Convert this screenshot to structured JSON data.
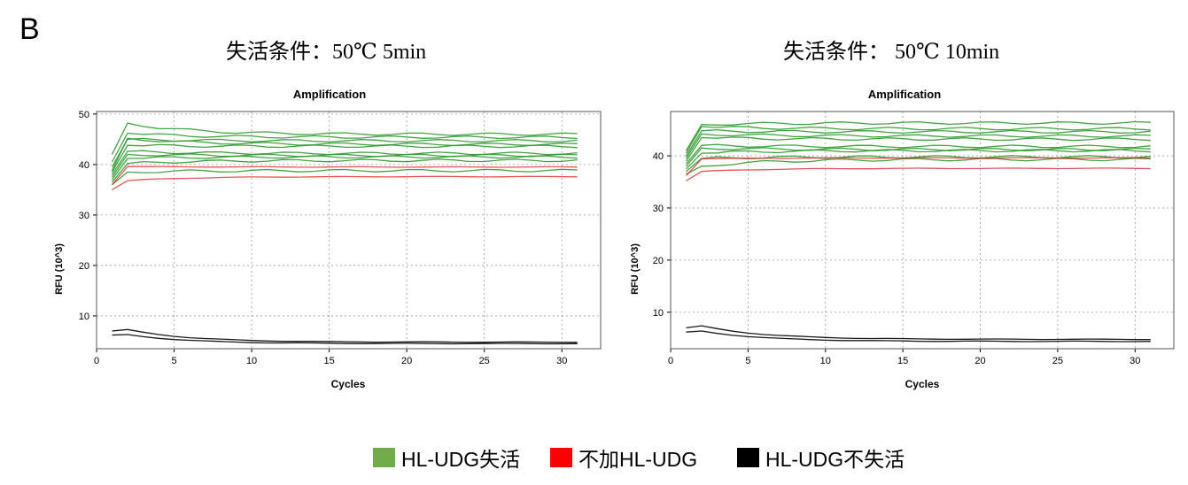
{
  "panel_label": "B",
  "conditions": {
    "left": "失活条件：50℃  5min",
    "right": "失活条件：  50℃  10min"
  },
  "legend": [
    {
      "label": "HL-UDG失活",
      "color": "#70ad47"
    },
    {
      "label": "不加HL-UDG",
      "color": "#ff0000"
    },
    {
      "label": "HL-UDG不失活",
      "color": "#000000"
    }
  ],
  "chart_data": [
    {
      "type": "line",
      "title": "Amplification",
      "xlabel": "Cycles",
      "ylabel": "RFU (10^3)",
      "xlim": [
        0,
        32.5
      ],
      "ylim": [
        3.5,
        50.5
      ],
      "xticks": [
        0,
        5,
        10,
        15,
        20,
        25,
        30
      ],
      "yticks": [
        10,
        20,
        30,
        40,
        50
      ],
      "grid": true,
      "x": [
        1,
        2,
        3,
        4,
        5,
        6,
        7,
        8,
        9,
        10,
        11,
        12,
        13,
        14,
        15,
        16,
        17,
        18,
        19,
        20,
        21,
        22,
        23,
        24,
        25,
        26,
        27,
        28,
        29,
        30,
        31
      ],
      "series": [
        {
          "group": "green",
          "color": "#2e9a2e",
          "start": 42.0,
          "peak": 48.2,
          "plateau": 46.0
        },
        {
          "group": "green",
          "color": "#2e9a2e",
          "start": 40.5,
          "peak": 46.2,
          "plateau": 45.4
        },
        {
          "group": "green",
          "color": "#2e9a2e",
          "start": 39.5,
          "peak": 45.0,
          "plateau": 44.7
        },
        {
          "group": "green",
          "color": "#2e9a2e",
          "start": 38.8,
          "peak": 45.2,
          "plateau": 44.0
        },
        {
          "group": "green",
          "color": "#2e9a2e",
          "start": 38.5,
          "peak": 43.8,
          "plateau": 43.6
        },
        {
          "group": "green",
          "color": "#2e9a2e",
          "start": 38.0,
          "peak": 42.6,
          "plateau": 42.2
        },
        {
          "group": "green",
          "color": "#2e9a2e",
          "start": 37.5,
          "peak": 42.0,
          "plateau": 41.8
        },
        {
          "group": "green",
          "color": "#2e9a2e",
          "start": 37.0,
          "peak": 41.2,
          "plateau": 41.5
        },
        {
          "group": "green",
          "color": "#2e9a2e",
          "start": 36.5,
          "peak": 40.2,
          "plateau": 40.8
        },
        {
          "group": "green",
          "color": "#2e9a2e",
          "start": 36.0,
          "peak": 38.5,
          "plateau": 38.8
        },
        {
          "group": "red",
          "color": "#e41a1c",
          "start": 36.0,
          "peak": 39.6,
          "plateau": 39.5
        },
        {
          "group": "red",
          "color": "#e41a1c",
          "start": 35.0,
          "peak": 36.8,
          "plateau": 37.6
        },
        {
          "group": "black",
          "color": "#000000",
          "start": 7.0,
          "peak": 7.3,
          "plateau": 4.8
        },
        {
          "group": "black",
          "color": "#000000",
          "start": 6.2,
          "peak": 6.3,
          "plateau": 4.5
        }
      ]
    },
    {
      "type": "line",
      "title": "Amplification",
      "xlabel": "Cycles",
      "ylabel": "RFU (10^3)",
      "xlim": [
        0,
        32.5
      ],
      "ylim": [
        3.0,
        48.5
      ],
      "xticks": [
        0,
        5,
        10,
        15,
        20,
        25,
        30
      ],
      "yticks": [
        10,
        20,
        30,
        40
      ],
      "grid": true,
      "x": [
        1,
        2,
        3,
        4,
        5,
        6,
        7,
        8,
        9,
        10,
        11,
        12,
        13,
        14,
        15,
        16,
        17,
        18,
        19,
        20,
        21,
        22,
        23,
        24,
        25,
        26,
        27,
        28,
        29,
        30,
        31
      ],
      "series": [
        {
          "group": "green",
          "color": "#2e9a2e",
          "start": 41.0,
          "peak": 46.0,
          "plateau": 46.3
        },
        {
          "group": "green",
          "color": "#2e9a2e",
          "start": 40.5,
          "peak": 45.6,
          "plateau": 45.2
        },
        {
          "group": "green",
          "color": "#2e9a2e",
          "start": 40.0,
          "peak": 44.8,
          "plateau": 44.6
        },
        {
          "group": "green",
          "color": "#2e9a2e",
          "start": 39.5,
          "peak": 44.2,
          "plateau": 43.8
        },
        {
          "group": "green",
          "color": "#2e9a2e",
          "start": 39.0,
          "peak": 43.5,
          "plateau": 43.2
        },
        {
          "group": "green",
          "color": "#2e9a2e",
          "start": 38.5,
          "peak": 42.0,
          "plateau": 41.8
        },
        {
          "group": "green",
          "color": "#2e9a2e",
          "start": 38.0,
          "peak": 41.5,
          "plateau": 41.2
        },
        {
          "group": "green",
          "color": "#2e9a2e",
          "start": 37.5,
          "peak": 40.5,
          "plateau": 41.0
        },
        {
          "group": "green",
          "color": "#2e9a2e",
          "start": 37.0,
          "peak": 39.5,
          "plateau": 39.8
        },
        {
          "group": "green",
          "color": "#2e9a2e",
          "start": 36.5,
          "peak": 38.0,
          "plateau": 39.3
        },
        {
          "group": "red",
          "color": "#e41a1c",
          "start": 36.2,
          "peak": 39.4,
          "plateau": 39.6
        },
        {
          "group": "red",
          "color": "#e41a1c",
          "start": 35.2,
          "peak": 37.0,
          "plateau": 37.6
        },
        {
          "group": "black",
          "color": "#000000",
          "start": 7.0,
          "peak": 7.4,
          "plateau": 4.8
        },
        {
          "group": "black",
          "color": "#000000",
          "start": 6.2,
          "peak": 6.4,
          "plateau": 4.4
        }
      ]
    }
  ]
}
